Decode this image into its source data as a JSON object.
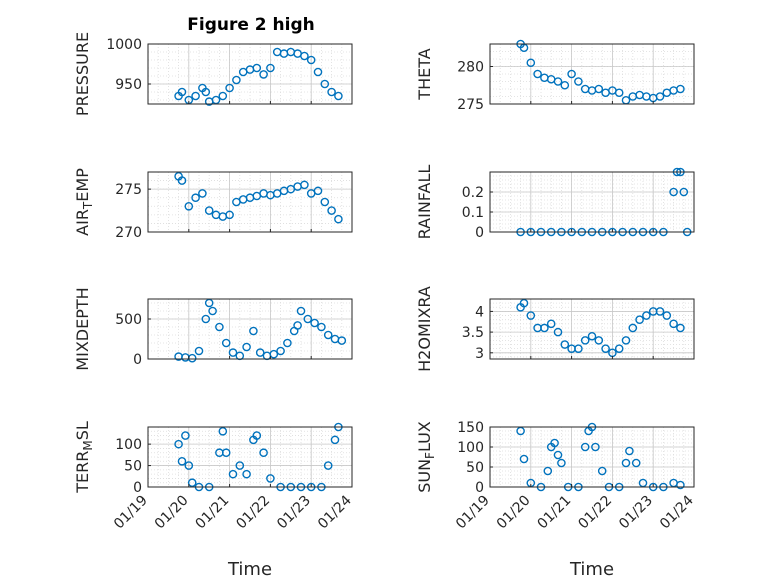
{
  "figure": {
    "title": "Figure 2 high",
    "marker_color": "#0072BD"
  },
  "chart_data": [
    {
      "type": "scatter",
      "title": "Figure 2 high",
      "ylabel": "PRESSURE",
      "xlabel": "",
      "xlim": [
        "01/19",
        "01/24"
      ],
      "ylim": [
        925,
        1000
      ],
      "yticks": [
        950,
        1000
      ],
      "grid": true,
      "x": [
        "01/19 18:00",
        "01/19 20:00",
        "01/20 00:00",
        "01/20 04:00",
        "01/20 08:00",
        "01/20 10:00",
        "01/20 12:00",
        "01/20 16:00",
        "01/20 20:00",
        "01/21 00:00",
        "01/21 04:00",
        "01/21 08:00",
        "01/21 12:00",
        "01/21 16:00",
        "01/21 20:00",
        "01/22 00:00",
        "01/22 04:00",
        "01/22 08:00",
        "01/22 12:00",
        "01/22 16:00",
        "01/22 20:00",
        "01/23 00:00",
        "01/23 04:00",
        "01/23 08:00",
        "01/23 12:00",
        "01/23 16:00"
      ],
      "y": [
        935,
        940,
        930,
        935,
        945,
        940,
        928,
        930,
        935,
        945,
        955,
        965,
        968,
        970,
        962,
        970,
        990,
        988,
        990,
        988,
        985,
        980,
        965,
        950,
        940,
        935
      ]
    },
    {
      "type": "scatter",
      "ylabel": "THETA",
      "xlabel": "",
      "xlim": [
        "01/19",
        "01/24"
      ],
      "ylim": [
        275,
        283
      ],
      "yticks": [
        275,
        280
      ],
      "grid": true,
      "x": [
        "01/19 18:00",
        "01/19 20:00",
        "01/20 00:00",
        "01/20 04:00",
        "01/20 08:00",
        "01/20 12:00",
        "01/20 16:00",
        "01/20 20:00",
        "01/21 00:00",
        "01/21 04:00",
        "01/21 08:00",
        "01/21 12:00",
        "01/21 16:00",
        "01/21 20:00",
        "01/22 00:00",
        "01/22 04:00",
        "01/22 08:00",
        "01/22 12:00",
        "01/22 16:00",
        "01/22 20:00",
        "01/23 00:00",
        "01/23 04:00",
        "01/23 08:00",
        "01/23 12:00",
        "01/23 16:00"
      ],
      "y": [
        283,
        282.5,
        280.5,
        279,
        278.5,
        278.3,
        278,
        277.5,
        279,
        278,
        277,
        276.8,
        277,
        276.5,
        276.8,
        276.5,
        275.5,
        276,
        276.2,
        276,
        275.8,
        276,
        276.5,
        276.8,
        277
      ]
    },
    {
      "type": "scatter",
      "ylabel": "AIR_TEMP",
      "xlabel": "",
      "xlim": [
        "01/19",
        "01/24"
      ],
      "ylim": [
        270,
        277
      ],
      "yticks": [
        270,
        275
      ],
      "grid": true,
      "x": [
        "01/19 18:00",
        "01/19 20:00",
        "01/20 00:00",
        "01/20 04:00",
        "01/20 08:00",
        "01/20 12:00",
        "01/20 16:00",
        "01/20 20:00",
        "01/21 00:00",
        "01/21 04:00",
        "01/21 08:00",
        "01/21 12:00",
        "01/21 16:00",
        "01/21 20:00",
        "01/22 00:00",
        "01/22 04:00",
        "01/22 08:00",
        "01/22 12:00",
        "01/22 16:00",
        "01/22 20:00",
        "01/23 00:00",
        "01/23 04:00",
        "01/23 08:00",
        "01/23 12:00",
        "01/23 16:00"
      ],
      "y": [
        276.5,
        276,
        273,
        274,
        274.5,
        272.5,
        272,
        271.8,
        272,
        273.5,
        273.8,
        274,
        274.2,
        274.5,
        274.3,
        274.5,
        274.8,
        275,
        275.3,
        275.5,
        274.5,
        274.8,
        273.5,
        272.5,
        271.5
      ]
    },
    {
      "type": "scatter",
      "ylabel": "RAINFALL",
      "xlabel": "",
      "xlim": [
        "01/19",
        "01/24"
      ],
      "ylim": [
        0,
        0.3
      ],
      "yticks": [
        0,
        0.1,
        0.2
      ],
      "grid": true,
      "x": [
        "01/19 18:00",
        "01/20 00:00",
        "01/20 06:00",
        "01/20 12:00",
        "01/20 18:00",
        "01/21 00:00",
        "01/21 06:00",
        "01/21 12:00",
        "01/21 18:00",
        "01/22 00:00",
        "01/22 06:00",
        "01/22 12:00",
        "01/22 18:00",
        "01/23 00:00",
        "01/23 06:00",
        "01/23 12:00",
        "01/23 14:00",
        "01/23 16:00",
        "01/23 18:00",
        "01/23 20:00"
      ],
      "y": [
        0,
        0,
        0,
        0,
        0,
        0,
        0,
        0,
        0,
        0,
        0,
        0,
        0,
        0,
        0,
        0.2,
        0.3,
        0.3,
        0.2,
        0
      ]
    },
    {
      "type": "scatter",
      "ylabel": "MIXDEPTH",
      "xlabel": "",
      "xlim": [
        "01/19",
        "01/24"
      ],
      "ylim": [
        0,
        750
      ],
      "yticks": [
        0,
        500
      ],
      "grid": true,
      "x": [
        "01/19 18:00",
        "01/19 22:00",
        "01/20 02:00",
        "01/20 06:00",
        "01/20 10:00",
        "01/20 12:00",
        "01/20 14:00",
        "01/20 18:00",
        "01/20 22:00",
        "01/21 02:00",
        "01/21 06:00",
        "01/21 10:00",
        "01/21 14:00",
        "01/21 18:00",
        "01/21 22:00",
        "01/22 02:00",
        "01/22 06:00",
        "01/22 10:00",
        "01/22 14:00",
        "01/22 16:00",
        "01/22 18:00",
        "01/22 22:00",
        "01/23 02:00",
        "01/23 06:00",
        "01/23 10:00",
        "01/23 14:00",
        "01/23 18:00"
      ],
      "y": [
        30,
        20,
        10,
        100,
        500,
        700,
        600,
        400,
        200,
        80,
        40,
        150,
        350,
        80,
        40,
        60,
        100,
        200,
        350,
        420,
        600,
        500,
        450,
        400,
        300,
        250,
        230
      ]
    },
    {
      "type": "scatter",
      "ylabel": "H2OMIXRA",
      "xlabel": "",
      "xlim": [
        "01/19",
        "01/24"
      ],
      "ylim": [
        2.85,
        4.3
      ],
      "yticks": [
        3,
        3.5,
        4
      ],
      "grid": true,
      "x": [
        "01/19 18:00",
        "01/19 20:00",
        "01/20 00:00",
        "01/20 04:00",
        "01/20 08:00",
        "01/20 12:00",
        "01/20 16:00",
        "01/20 20:00",
        "01/21 00:00",
        "01/21 04:00",
        "01/21 08:00",
        "01/21 12:00",
        "01/21 16:00",
        "01/21 20:00",
        "01/22 00:00",
        "01/22 04:00",
        "01/22 08:00",
        "01/22 12:00",
        "01/22 16:00",
        "01/22 20:00",
        "01/23 00:00",
        "01/23 04:00",
        "01/23 08:00",
        "01/23 12:00",
        "01/23 16:00"
      ],
      "y": [
        4.1,
        4.2,
        3.9,
        3.6,
        3.6,
        3.7,
        3.5,
        3.2,
        3.1,
        3.1,
        3.3,
        3.4,
        3.3,
        3.1,
        3.0,
        3.1,
        3.3,
        3.6,
        3.8,
        3.9,
        4.0,
        4.0,
        3.9,
        3.7,
        3.6
      ]
    },
    {
      "type": "scatter",
      "ylabel": "TERR_MSL",
      "xlabel": "Time",
      "xlim": [
        "01/19",
        "01/24"
      ],
      "xticks": [
        "01/19",
        "01/20",
        "01/21",
        "01/22",
        "01/23",
        "01/24"
      ],
      "ylim": [
        0,
        140
      ],
      "yticks": [
        0,
        50,
        100
      ],
      "grid": true,
      "x": [
        "01/19 18:00",
        "01/19 20:00",
        "01/19 22:00",
        "01/20 00:00",
        "01/20 02:00",
        "01/20 06:00",
        "01/20 12:00",
        "01/20 18:00",
        "01/20 20:00",
        "01/20 22:00",
        "01/21 02:00",
        "01/21 06:00",
        "01/21 10:00",
        "01/21 14:00",
        "01/21 16:00",
        "01/21 20:00",
        "01/22 00:00",
        "01/22 06:00",
        "01/22 12:00",
        "01/22 18:00",
        "01/23 00:00",
        "01/23 06:00",
        "01/23 10:00",
        "01/23 14:00",
        "01/23 16:00"
      ],
      "y": [
        100,
        60,
        120,
        50,
        10,
        0,
        0,
        80,
        130,
        80,
        30,
        50,
        30,
        110,
        120,
        80,
        20,
        0,
        0,
        0,
        0,
        0,
        50,
        110,
        140
      ]
    },
    {
      "type": "scatter",
      "ylabel": "SUN_FLUX",
      "xlabel": "Time",
      "xlim": [
        "01/19",
        "01/24"
      ],
      "xticks": [
        "01/19",
        "01/20",
        "01/21",
        "01/22",
        "01/23",
        "01/24"
      ],
      "ylim": [
        0,
        150
      ],
      "yticks": [
        0,
        50,
        100,
        150
      ],
      "grid": true,
      "x": [
        "01/19 18:00",
        "01/19 20:00",
        "01/20 00:00",
        "01/20 06:00",
        "01/20 10:00",
        "01/20 12:00",
        "01/20 14:00",
        "01/20 16:00",
        "01/20 18:00",
        "01/20 22:00",
        "01/21 04:00",
        "01/21 08:00",
        "01/21 10:00",
        "01/21 12:00",
        "01/21 14:00",
        "01/21 18:00",
        "01/21 22:00",
        "01/22 04:00",
        "01/22 08:00",
        "01/22 10:00",
        "01/22 14:00",
        "01/22 18:00",
        "01/23 00:00",
        "01/23 06:00",
        "01/23 12:00",
        "01/23 16:00"
      ],
      "y": [
        140,
        70,
        10,
        0,
        40,
        100,
        110,
        80,
        60,
        0,
        0,
        100,
        140,
        150,
        100,
        40,
        0,
        0,
        60,
        90,
        60,
        10,
        0,
        0,
        10,
        5
      ]
    }
  ]
}
